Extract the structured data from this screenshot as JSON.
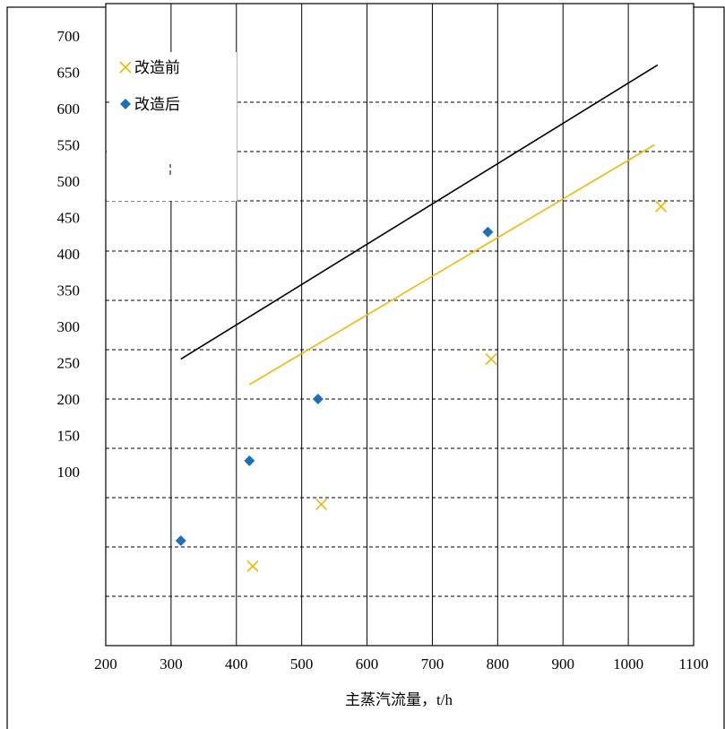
{
  "chart_data": {
    "type": "scatter",
    "title": "",
    "xlabel": "主蒸汽流量，t/h",
    "ylabel": "",
    "x_ticks": [
      200,
      300,
      400,
      500,
      600,
      700,
      800,
      900,
      1000,
      1100
    ],
    "y_ticks": [
      100,
      150,
      200,
      250,
      300,
      350,
      400,
      450,
      500,
      550,
      600,
      650,
      700
    ],
    "legend_position": "top-left",
    "series": [
      {
        "name": "改造前",
        "marker": "x",
        "color": "#F2B705",
        "points": [
          {
            "x": 425,
            "y": -30
          },
          {
            "x": 530,
            "y": 55
          },
          {
            "x": 790,
            "y": 255
          },
          {
            "x": 1050,
            "y": 465
          }
        ],
        "trendline": {
          "x1": 420,
          "y1": 220,
          "x2": 1040,
          "y2": 550
        }
      },
      {
        "name": "改造后",
        "marker": "diamond",
        "color": "#1E6FB8",
        "points": [
          {
            "x": 315,
            "y": 5
          },
          {
            "x": 420,
            "y": 115
          },
          {
            "x": 525,
            "y": 200
          },
          {
            "x": 785,
            "y": 430
          }
        ]
      }
    ],
    "reference_line": {
      "color": "#000000",
      "x1": 315,
      "y1": 255,
      "x2": 1045,
      "y2": 660
    }
  }
}
